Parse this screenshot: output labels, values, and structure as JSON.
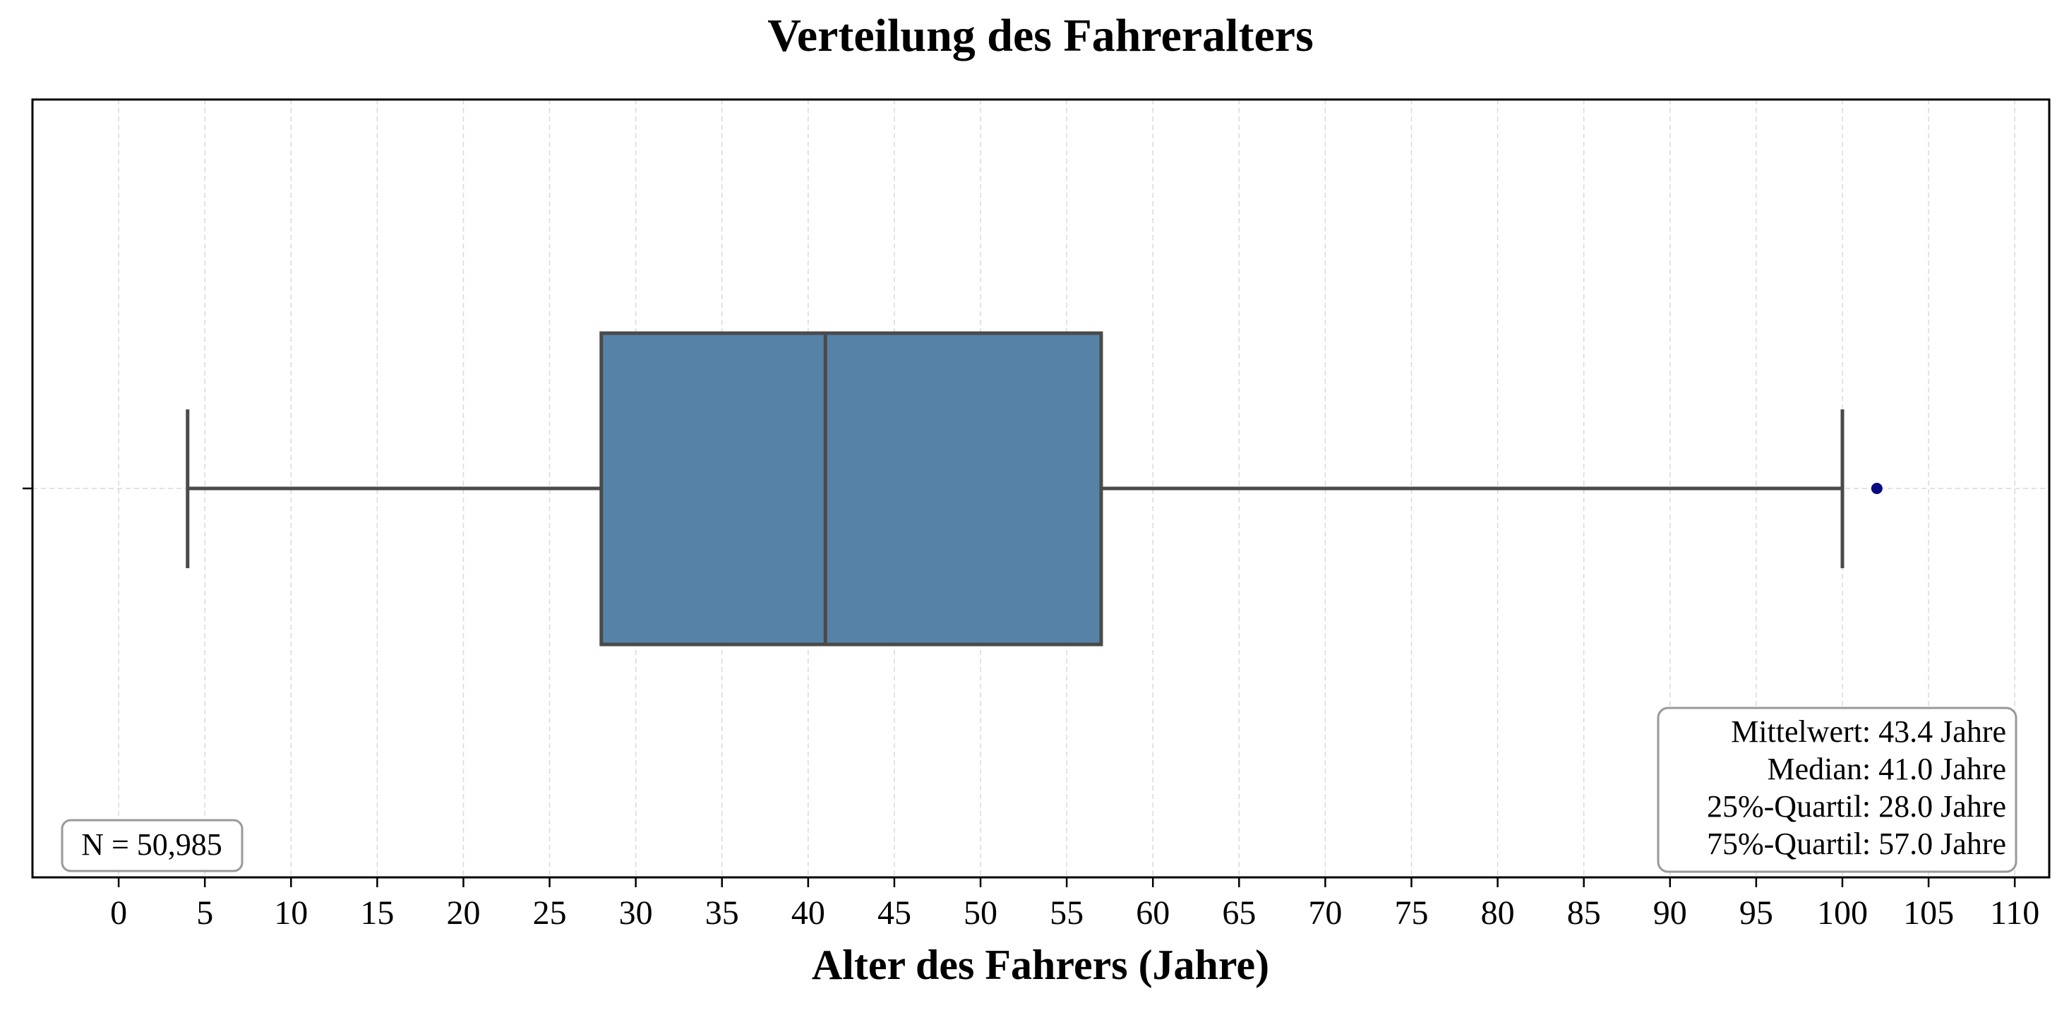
{
  "chart_data": {
    "type": "boxplot",
    "title": "Verteilung des Fahreralters",
    "xlabel": "Alter des Fahrers (Jahre)",
    "ylabel": "",
    "xlim": [
      -5,
      112
    ],
    "x_ticks": [
      0,
      5,
      10,
      15,
      20,
      25,
      30,
      35,
      40,
      45,
      50,
      55,
      60,
      65,
      70,
      75,
      80,
      85,
      90,
      95,
      100,
      105,
      110
    ],
    "x_tick_labels": [
      "0",
      "5",
      "10",
      "15",
      "20",
      "25",
      "30",
      "35",
      "40",
      "45",
      "50",
      "55",
      "60",
      "65",
      "70",
      "75",
      "80",
      "85",
      "90",
      "95",
      "100",
      "105",
      "110"
    ],
    "grid": true,
    "box": {
      "whisker_low": 4,
      "q1": 28,
      "median": 41,
      "q3": 57,
      "whisker_high": 100,
      "outliers": [
        102
      ]
    },
    "box_color": "#5682A8",
    "line_color": "#4A4A4A",
    "outlier_color": "#0A0A80",
    "annotations": {
      "count": "N = 50,985",
      "stats": [
        "Mittelwert: 43.4 Jahre",
        "Median: 41.0 Jahre",
        "25%-Quartil: 28.0 Jahre",
        "75%-Quartil: 57.0 Jahre"
      ]
    },
    "count_box_placement": "bottom-left",
    "stats_box_placement": "bottom-right"
  }
}
